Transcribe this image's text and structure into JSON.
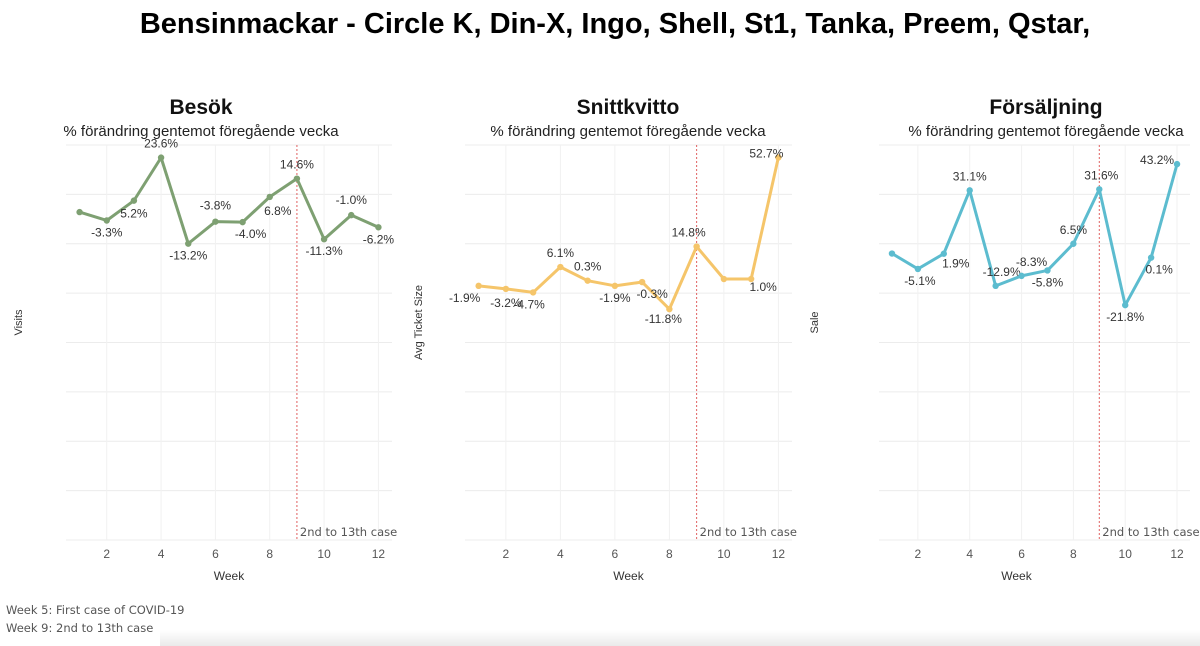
{
  "title": "Bensinmackar - Circle K, Din-X, Ingo, Shell, St1, Tanka, Preem, Qstar,",
  "footnotes": [
    "Week 5: First case of COVID-19",
    "Week 9: 2nd to 13th case"
  ],
  "chart_data": [
    {
      "type": "line",
      "title": "Besök",
      "subtitle": "% förändring gentemot föregående vecka",
      "xlabel": "Week",
      "ylabel": "Visits",
      "color": "#7ea072",
      "xticks": [
        2,
        4,
        6,
        8,
        10,
        12
      ],
      "x": [
        1,
        2,
        3,
        4,
        5,
        6,
        7,
        8,
        9,
        10,
        11,
        12
      ],
      "values": [
        0.3,
        -3.3,
        5.2,
        23.6,
        -13.2,
        -3.8,
        -4.0,
        6.8,
        14.6,
        -11.3,
        -1.0,
        -6.2
      ],
      "labels": [
        "",
        "-3.3%",
        "5.2%",
        "23.6%",
        "-13.2%",
        "-3.8%",
        "-4.0%",
        "6.8%",
        "14.6%",
        "-11.3%",
        "-1.0%",
        "-6.2%"
      ],
      "reference_line": {
        "x": 9,
        "label": "2nd to 13th case",
        "color": "#e06060"
      }
    },
    {
      "type": "line",
      "title": "Snittkvitto",
      "subtitle": "% förändring gentemot föregående vecka",
      "xlabel": "Week",
      "ylabel": "Avg Ticket Size",
      "color": "#f5c56a",
      "xticks": [
        2,
        4,
        6,
        8,
        10,
        12
      ],
      "x": [
        1,
        2,
        3,
        4,
        5,
        6,
        7,
        8,
        9,
        10,
        11,
        12
      ],
      "values": [
        -1.9,
        -3.2,
        -4.7,
        6.1,
        0.3,
        -1.9,
        -0.3,
        -11.8,
        14.8,
        1.0,
        1.0,
        52.7
      ],
      "labels": [
        "-1.9%",
        "-3.2%",
        "-4.7%",
        "6.1%",
        "0.3%",
        "-1.9%",
        "-0.3%",
        "-11.8%",
        "14.8%",
        "",
        "1.0%",
        "52.7%"
      ],
      "reference_line": {
        "x": 9,
        "label": "2nd to 13th case",
        "color": "#e06060"
      }
    },
    {
      "type": "line",
      "title": "Försäljning",
      "subtitle": "% förändring gentemot föregående vecka",
      "xlabel": "Week",
      "ylabel": "Sale",
      "color": "#5cbccf",
      "xticks": [
        2,
        4,
        6,
        8,
        10,
        12
      ],
      "x": [
        1,
        2,
        3,
        4,
        5,
        6,
        7,
        8,
        9,
        10,
        11,
        12
      ],
      "values": [
        2.0,
        -5.1,
        1.9,
        31.1,
        -12.9,
        -8.3,
        -5.8,
        6.5,
        31.6,
        -21.8,
        0.1,
        43.2
      ],
      "labels": [
        "",
        "-5.1%",
        "1.9%",
        "31.1%",
        "-12.9%",
        "-8.3%",
        "-5.8%",
        "6.5%",
        "31.6%",
        "-21.8%",
        "0.1%",
        "43.2%"
      ],
      "reference_line": {
        "x": 9,
        "label": "2nd to 13th case",
        "color": "#e06060"
      }
    }
  ]
}
